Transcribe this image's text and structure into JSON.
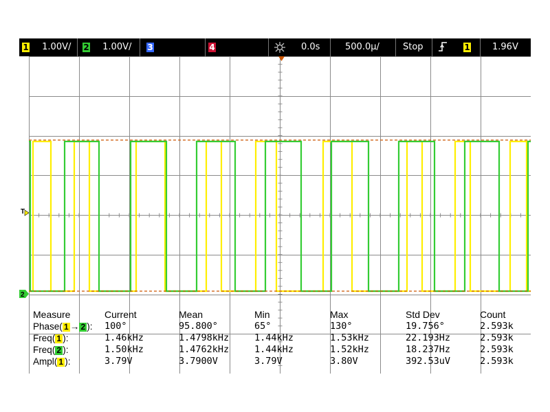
{
  "topbar": {
    "ch1": {
      "num": "1",
      "scale": "1.00V/"
    },
    "ch2": {
      "num": "2",
      "scale": "1.00V/"
    },
    "ch3": {
      "num": "3"
    },
    "ch4": {
      "num": "4"
    },
    "trigger_delay": "0.0s",
    "timebase": "500.0µ/",
    "run_state": "Stop",
    "trigger_slope_icon": "rising-edge-icon",
    "trigger_source": "1",
    "trigger_level": "1.96V"
  },
  "markers": {
    "trigger_level_marker": "T",
    "ground_marker": "2"
  },
  "measurements": {
    "headers": [
      "Measure",
      "Current",
      "Mean",
      "Min",
      "Max",
      "Std Dev",
      "Count"
    ],
    "rows": [
      {
        "label_pre": "Phase(",
        "ch_a": "1",
        "label_mid": "→",
        "ch_b": "2",
        "label_post": "):",
        "current": "100°",
        "mean": "95.800°",
        "min": "65°",
        "max": "130°",
        "stddev": "19.756°",
        "count": "2.593k"
      },
      {
        "label_pre": "Freq(",
        "ch_a": "1",
        "label_post": "):",
        "current": "1.46kHz",
        "mean": "1.4798kHz",
        "min": "1.44kHz",
        "max": "1.53kHz",
        "stddev": "22.193Hz",
        "count": "2.593k"
      },
      {
        "label_pre": "Freq(",
        "ch_a": "2",
        "label_post": "):",
        "current": "1.50kHz",
        "mean": "1.4762kHz",
        "min": "1.44kHz",
        "max": "1.52kHz",
        "stddev": "18.237Hz",
        "count": "2.593k"
      },
      {
        "label_pre": "Ampl(",
        "ch_a": "1",
        "label_post": "):",
        "current": "3.79V",
        "mean": "3.7900V",
        "min": "3.79V",
        "max": "3.80V",
        "stddev": "392.53uV",
        "count": "2.593k"
      }
    ]
  },
  "colors": {
    "ch1": "#ffee00",
    "ch2": "#33cc33",
    "ch3": "#3366ff",
    "ch4": "#cc1133",
    "grid": "#8a8a8a",
    "cursor": "#cc5500"
  }
}
